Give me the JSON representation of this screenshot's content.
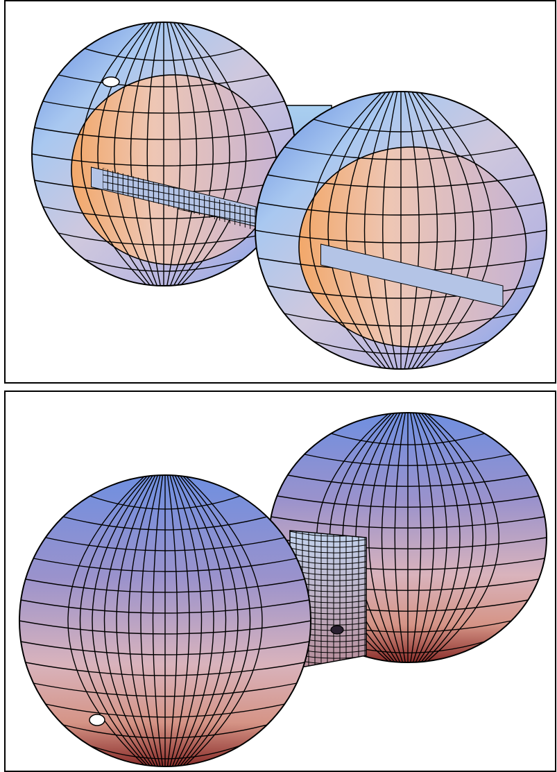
{
  "figure": {
    "panels": [
      {
        "id": "top",
        "view": "cutaway",
        "description": ""
      },
      {
        "id": "bottom",
        "view": "exterior",
        "description": ""
      }
    ]
  },
  "palette": {
    "frame": "#000000",
    "mesh_line": "#000000",
    "shade_highlight": "#a9e3f1",
    "shade_blue": "#6f8fe0",
    "shade_lavender": "#c9c2de",
    "shade_peach": "#eec6b4",
    "shade_orange": "#f2a86a",
    "shade_dark_red": "#8a2d2a",
    "shade_dark_blue": "#2d3fb0",
    "tube_fill": "#b4c4e6"
  }
}
